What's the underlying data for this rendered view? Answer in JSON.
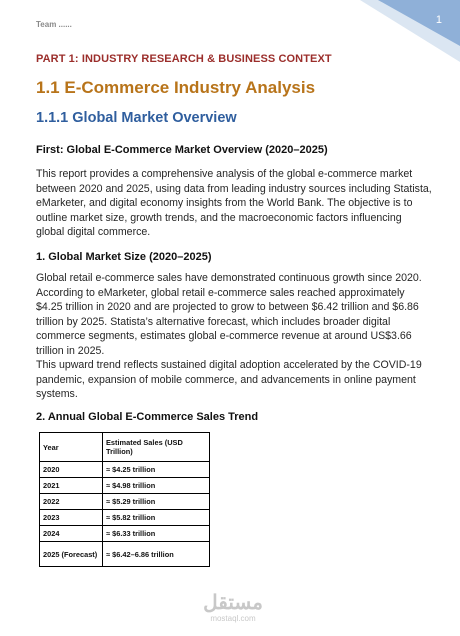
{
  "header": {
    "team_label": "Team ......",
    "page_number": "1"
  },
  "document": {
    "part_heading": "PART 1: INDUSTRY RESEARCH & BUSINESS CONTEXT",
    "h1": "1.1 E-Commerce Industry Analysis",
    "h2": "1.1.1 Global Market Overview",
    "section_first": {
      "title": "First: Global E-Commerce Market Overview (2020–2025)",
      "body": "This report provides a comprehensive analysis of the global e-commerce market between 2020 and 2025, using data from leading industry sources including Statista, eMarketer, and digital economy insights from the World Bank. The objective is to outline market size, growth trends, and the macroeconomic factors influencing global digital commerce."
    },
    "section_1": {
      "title": "1. Global Market Size (2020–2025)",
      "body_1": "Global retail e-commerce sales have demonstrated continuous growth since 2020. According to eMarketer, global retail e-commerce sales reached approximately $4.25 trillion in 2020 and are projected to grow to between $6.42 trillion and $6.86 trillion by 2025. Statista’s alternative forecast, which includes broader digital commerce segments, estimates global e-commerce revenue at around US$3.66 trillion in 2025.",
      "body_2": "This upward trend reflects sustained digital adoption accelerated by the COVID-19 pandemic, expansion of mobile commerce, and advancements in online payment systems."
    },
    "section_2": {
      "title": "2. Annual Global E-Commerce Sales Trend"
    },
    "table": {
      "headers": [
        "Year",
        "Estimated Sales (USD Trillion)"
      ],
      "rows": [
        {
          "year": "2020",
          "sales": "≈ $4.25 trillion"
        },
        {
          "year": "2021",
          "sales": "≈ $4.98 trillion"
        },
        {
          "year": "2022",
          "sales": "≈ $5.29 trillion"
        },
        {
          "year": "2023",
          "sales": "≈ $5.82 trillion"
        },
        {
          "year": "2024",
          "sales": "≈ $6.33 trillion"
        },
        {
          "year": "2025 (Forecast)",
          "sales": "≈ $6.42–6.86 trillion"
        }
      ]
    }
  },
  "watermark": {
    "logo_text": "مستقل",
    "site": "mostaql.com"
  },
  "colors": {
    "part_heading": "#9b2e2b",
    "h1": "#b8741a",
    "h2": "#2f5e9e",
    "corner_dark": "#8fb0d8",
    "corner_light": "#dbe6f2"
  }
}
